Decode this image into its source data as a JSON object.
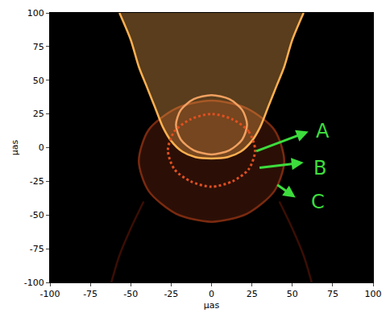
{
  "chart_data": {
    "type": "image",
    "xlabel": "µas",
    "ylabel": "µas",
    "xlim": [
      -100,
      100
    ],
    "ylim": [
      -100,
      100
    ],
    "xticks": [
      -100,
      -75,
      -50,
      -25,
      0,
      25,
      50,
      75,
      100
    ],
    "yticks": [
      -100,
      -75,
      -50,
      -25,
      0,
      25,
      50,
      75,
      100
    ],
    "grid": false,
    "series": [
      {
        "type": "area",
        "color": "#7a2a10",
        "line_style": "solid",
        "x": [
          45,
          39,
          22,
          0,
          -22,
          -39,
          -45,
          -39,
          -22,
          0,
          22,
          39,
          45
        ],
        "y": [
          -10,
          13,
          29,
          35,
          29,
          13,
          -10,
          -32,
          -49,
          -55,
          -49,
          -32,
          -10
        ]
      },
      {
        "type": "line",
        "color": "#3a0e04",
        "line_style": "solid",
        "x": [
          -42,
          -50,
          -57,
          -62
        ],
        "y": [
          -40,
          -60,
          -80,
          -100
        ]
      },
      {
        "type": "line",
        "color": "#3a0e04",
        "line_style": "solid",
        "x": [
          42,
          50,
          57,
          62
        ],
        "y": [
          -40,
          -60,
          -80,
          -100
        ]
      },
      {
        "type": "area",
        "color": "#ffb050",
        "line_style": "solid",
        "x": [
          -57,
          -50,
          -45,
          -40,
          -35,
          -30,
          -25,
          -18,
          -10,
          0,
          10,
          18,
          25,
          30,
          35,
          40,
          45,
          50,
          57
        ],
        "y": [
          100,
          80,
          60,
          45,
          30,
          15,
          5,
          -3,
          -7,
          -8,
          -7,
          -3,
          5,
          15,
          30,
          45,
          60,
          80,
          100
        ]
      },
      {
        "type": "line",
        "color": "#f0a060",
        "line_style": "solid",
        "x": [
          22,
          19,
          11,
          0,
          -11,
          -19,
          -22,
          -19,
          -11,
          0,
          11,
          19,
          22
        ],
        "y": [
          17,
          28,
          36,
          39,
          36,
          28,
          17,
          6,
          -2,
          -5,
          -2,
          6,
          17
        ]
      },
      {
        "type": "line",
        "color": "#e05020",
        "line_style": "dot",
        "x": [
          27,
          23,
          13,
          0,
          -13,
          -23,
          -27,
          -23,
          -13,
          0,
          13,
          23,
          27
        ],
        "y": [
          -2,
          12,
          21,
          25,
          21,
          12,
          -2,
          -16,
          -25,
          -29,
          -25,
          -16,
          -2
        ]
      }
    ],
    "annotations": [
      {
        "text": "A",
        "x": 69,
        "y": 12,
        "arrow_from": [
          27,
          -3
        ],
        "arrow_to": [
          60,
          12
        ],
        "color": "#3ddc3d"
      },
      {
        "text": "B",
        "x": 67,
        "y": -15,
        "arrow_from": [
          29,
          -15
        ],
        "arrow_to": [
          57,
          -11
        ],
        "color": "#3ddc3d"
      },
      {
        "text": "C",
        "x": 66,
        "y": -40,
        "arrow_from": [
          40,
          -27
        ],
        "arrow_to": [
          52,
          -37
        ],
        "color": "#3ddc3d"
      }
    ]
  }
}
